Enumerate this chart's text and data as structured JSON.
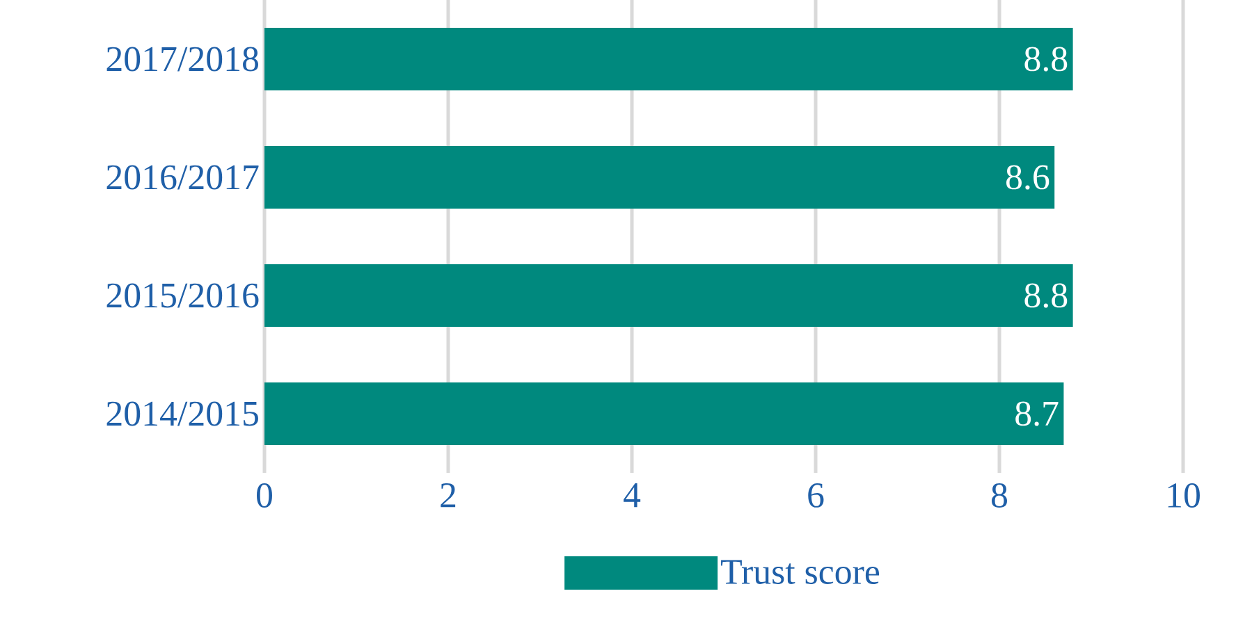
{
  "chart_data": {
    "type": "bar",
    "orientation": "horizontal",
    "categories": [
      "2017/2018",
      "2016/2017",
      "2015/2016",
      "2014/2015"
    ],
    "series": [
      {
        "name": "Trust score",
        "color": "#00897e",
        "values": [
          8.8,
          8.6,
          8.8,
          8.7
        ]
      }
    ],
    "xlim": [
      0,
      10
    ],
    "xticks": [
      0,
      2,
      4,
      6,
      8,
      10
    ],
    "grid": "x",
    "legend": "bottom",
    "data_labels": true
  }
}
